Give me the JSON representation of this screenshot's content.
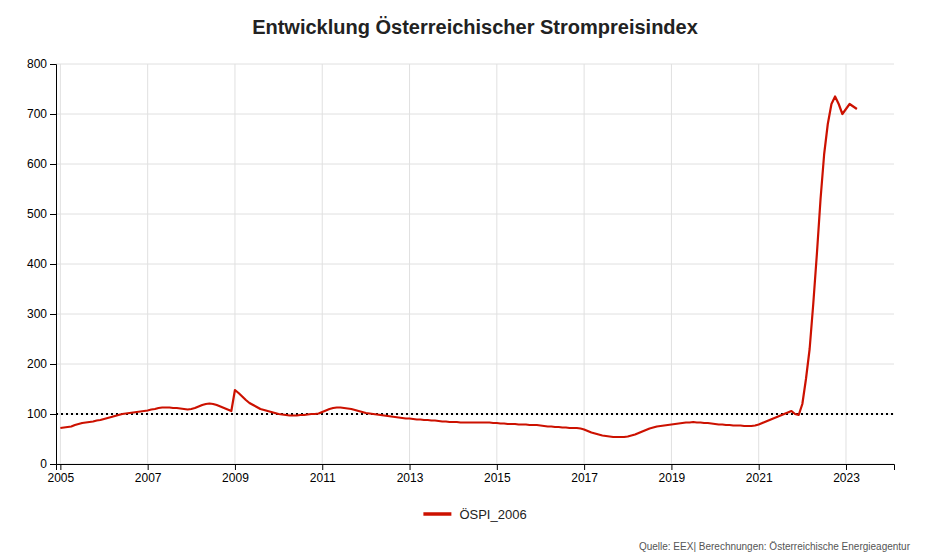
{
  "chart_data": {
    "type": "line",
    "title": "Entwicklung Österreichischer Strompreisindex",
    "source": "Quelle: EEX| Berechnungen: Österreichische Energieagentur",
    "x": [
      2005.0,
      2005.083,
      2005.167,
      2005.25,
      2005.333,
      2005.417,
      2005.5,
      2005.583,
      2005.667,
      2005.75,
      2005.833,
      2005.917,
      2006.0,
      2006.083,
      2006.167,
      2006.25,
      2006.333,
      2006.417,
      2006.5,
      2006.583,
      2006.667,
      2006.75,
      2006.833,
      2006.917,
      2007.0,
      2007.083,
      2007.167,
      2007.25,
      2007.333,
      2007.417,
      2007.5,
      2007.583,
      2007.667,
      2007.75,
      2007.833,
      2007.917,
      2008.0,
      2008.083,
      2008.167,
      2008.25,
      2008.333,
      2008.417,
      2008.5,
      2008.583,
      2008.667,
      2008.75,
      2008.833,
      2008.917,
      2009.0,
      2009.083,
      2009.167,
      2009.25,
      2009.333,
      2009.417,
      2009.5,
      2009.583,
      2009.667,
      2009.75,
      2009.833,
      2009.917,
      2010.0,
      2010.083,
      2010.167,
      2010.25,
      2010.333,
      2010.417,
      2010.5,
      2010.583,
      2010.667,
      2010.75,
      2010.833,
      2010.917,
      2011.0,
      2011.083,
      2011.167,
      2011.25,
      2011.333,
      2011.417,
      2011.5,
      2011.583,
      2011.667,
      2011.75,
      2011.833,
      2011.917,
      2012.0,
      2012.083,
      2012.167,
      2012.25,
      2012.333,
      2012.417,
      2012.5,
      2012.583,
      2012.667,
      2012.75,
      2012.833,
      2012.917,
      2013.0,
      2013.083,
      2013.167,
      2013.25,
      2013.333,
      2013.417,
      2013.5,
      2013.583,
      2013.667,
      2013.75,
      2013.833,
      2013.917,
      2014.0,
      2014.083,
      2014.167,
      2014.25,
      2014.333,
      2014.417,
      2014.5,
      2014.583,
      2014.667,
      2014.75,
      2014.833,
      2014.917,
      2015.0,
      2015.083,
      2015.167,
      2015.25,
      2015.333,
      2015.417,
      2015.5,
      2015.583,
      2015.667,
      2015.75,
      2015.833,
      2015.917,
      2016.0,
      2016.083,
      2016.167,
      2016.25,
      2016.333,
      2016.417,
      2016.5,
      2016.583,
      2016.667,
      2016.75,
      2016.833,
      2016.917,
      2017.0,
      2017.083,
      2017.167,
      2017.25,
      2017.333,
      2017.417,
      2017.5,
      2017.583,
      2017.667,
      2017.75,
      2017.833,
      2017.917,
      2018.0,
      2018.083,
      2018.167,
      2018.25,
      2018.333,
      2018.417,
      2018.5,
      2018.583,
      2018.667,
      2018.75,
      2018.833,
      2018.917,
      2019.0,
      2019.083,
      2019.167,
      2019.25,
      2019.333,
      2019.417,
      2019.5,
      2019.583,
      2019.667,
      2019.75,
      2019.833,
      2019.917,
      2020.0,
      2020.083,
      2020.167,
      2020.25,
      2020.333,
      2020.417,
      2020.5,
      2020.583,
      2020.667,
      2020.75,
      2020.833,
      2020.917,
      2021.0,
      2021.083,
      2021.167,
      2021.25,
      2021.333,
      2021.417,
      2021.5,
      2021.583,
      2021.667,
      2021.75,
      2021.833,
      2021.917,
      2022.0,
      2022.083,
      2022.167,
      2022.25,
      2022.333,
      2022.417,
      2022.5,
      2022.583,
      2022.667,
      2022.75,
      2022.833,
      2022.917,
      2023.0,
      2023.083,
      2023.167,
      2023.25
    ],
    "series": [
      {
        "name": "ÖSPI_2006",
        "color": "#CC1100",
        "values": [
          72,
          73,
          74,
          75,
          78,
          80,
          82,
          83,
          84,
          85,
          87,
          88,
          90,
          92,
          94,
          96,
          98,
          100,
          101,
          102,
          103,
          104,
          105,
          106,
          107,
          109,
          110,
          112,
          113,
          113,
          113,
          112,
          112,
          111,
          110,
          109,
          110,
          112,
          115,
          118,
          120,
          121,
          120,
          118,
          115,
          112,
          109,
          106,
          148,
          142,
          135,
          128,
          122,
          118,
          114,
          110,
          108,
          106,
          104,
          102,
          100,
          99,
          98,
          97,
          97,
          97,
          98,
          98,
          99,
          100,
          100,
          101,
          104,
          107,
          110,
          112,
          113,
          113,
          112,
          111,
          110,
          108,
          106,
          104,
          102,
          101,
          100,
          99,
          98,
          97,
          96,
          95,
          94,
          93,
          92,
          91,
          91,
          90,
          89,
          89,
          88,
          88,
          87,
          87,
          86,
          85,
          85,
          84,
          84,
          84,
          83,
          83,
          83,
          83,
          83,
          83,
          83,
          83,
          83,
          82,
          82,
          81,
          81,
          80,
          80,
          80,
          79,
          79,
          79,
          78,
          78,
          78,
          77,
          76,
          75,
          75,
          74,
          74,
          73,
          73,
          72,
          72,
          72,
          71,
          69,
          66,
          63,
          61,
          59,
          57,
          56,
          55,
          54,
          54,
          54,
          54,
          55,
          57,
          59,
          62,
          65,
          68,
          71,
          73,
          75,
          76,
          77,
          78,
          79,
          80,
          81,
          82,
          83,
          83,
          84,
          83,
          83,
          82,
          82,
          81,
          80,
          79,
          79,
          78,
          78,
          77,
          77,
          77,
          76,
          76,
          76,
          77,
          79,
          82,
          85,
          88,
          91,
          94,
          97,
          100,
          103,
          106,
          100,
          98,
          120,
          170,
          230,
          320,
          420,
          530,
          620,
          680,
          720,
          735,
          720,
          700,
          710,
          720,
          715,
          710
        ]
      }
    ],
    "reference_value": 100,
    "xlim": [
      2004.9,
      2024.1
    ],
    "xticks": [
      2005,
      2007,
      2009,
      2011,
      2013,
      2015,
      2017,
      2019,
      2021,
      2023
    ],
    "ylim": [
      0,
      800
    ],
    "yticks": [
      0,
      100,
      200,
      300,
      400,
      500,
      600,
      700,
      800
    ],
    "grid": true,
    "legend": "bottom"
  }
}
